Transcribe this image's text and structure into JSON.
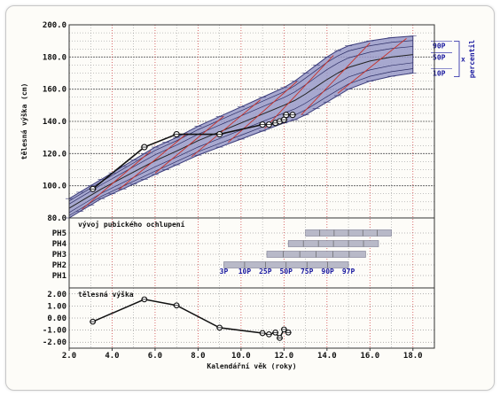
{
  "chart_data": [
    {
      "type": "line",
      "panel": "height",
      "ylabel": "tělesná výška (cm)",
      "ylim": [
        80,
        200
      ],
      "yticks": [
        80,
        100,
        120,
        140,
        160,
        180,
        200
      ],
      "ytick_labels": [
        "80.0",
        "100.0",
        "120.0",
        "140.0",
        "160.0",
        "180.0",
        "200.0"
      ],
      "percentile_band": {
        "x": [
          2,
          2.5,
          3,
          3.5,
          4,
          4.5,
          5,
          5.5,
          6,
          6.5,
          7,
          8,
          9,
          10,
          11,
          12,
          12.5,
          13,
          13.5,
          14,
          14.5,
          15,
          16,
          17,
          18
        ],
        "p97": [
          92,
          96,
          100,
          104,
          108,
          112,
          116,
          120,
          124,
          127,
          130,
          137,
          143,
          149,
          155,
          161,
          165,
          170,
          175,
          180,
          184,
          187,
          190,
          192,
          193
        ],
        "p3": [
          80,
          84,
          88,
          92,
          95,
          98,
          101,
          104,
          107,
          110,
          113,
          119,
          124,
          129,
          134,
          139,
          141,
          144,
          148,
          152,
          156,
          160,
          165,
          168,
          170
        ]
      },
      "percentile_labels": [
        "90P",
        "50P",
        "10P"
      ],
      "percentile_label_values": [
        187,
        180,
        170
      ],
      "side_label": "percentil",
      "side_symbol": "x",
      "series": [
        {
          "x": [
            3.1,
            5.5,
            7.0,
            9.0,
            11.0,
            11.3,
            11.6,
            11.8,
            12.0,
            12.1,
            12.4
          ],
          "y": [
            98,
            124,
            132,
            132,
            138,
            138,
            139,
            140,
            141,
            144,
            144
          ]
        }
      ]
    },
    {
      "type": "bar",
      "panel": "puberty",
      "title": "vývoj pubického ochlupení",
      "categories": [
        "PH5",
        "PH4",
        "PH3",
        "PH2",
        "PH1"
      ],
      "ranges": [
        [
          13.0,
          17.0
        ],
        [
          12.2,
          16.4
        ],
        [
          11.2,
          15.8
        ],
        [
          9.2,
          15.0
        ],
        null
      ],
      "centile_labels": [
        "3P",
        "10P",
        "25P",
        "50P",
        "75P",
        "90P",
        "97P"
      ]
    },
    {
      "type": "line",
      "panel": "sds",
      "title": "tělesná výška",
      "ylim": [
        -2.5,
        2.5
      ],
      "yticks": [
        2,
        1,
        0,
        -1,
        -2
      ],
      "ytick_labels": [
        "2.00",
        "1.00",
        "0.00",
        "-1.00",
        "-2.00"
      ],
      "series": [
        {
          "x": [
            3.1,
            5.5,
            7.0,
            9.0,
            11.0,
            11.3,
            11.6,
            11.8,
            12.0,
            12.2
          ],
          "y": [
            -0.3,
            1.55,
            1.05,
            -0.8,
            -1.25,
            -1.35,
            -1.2,
            -1.65,
            -0.95,
            -1.2
          ]
        }
      ]
    }
  ],
  "xaxis": {
    "label": "Kalendářní věk (roky)",
    "ticks": [
      2,
      4,
      6,
      8,
      10,
      12,
      14,
      16,
      18
    ],
    "tick_labels": [
      "2.0",
      "4.0",
      "6.0",
      "8.0",
      "10.0",
      "12.0",
      "14.0",
      "16.0",
      "18.0"
    ]
  },
  "colors": {
    "band": "#9899c8",
    "band_edge": "#3b3c7a",
    "red_line": "#c8322a",
    "series": "#111111",
    "puberty_bar": "#b8b9c8",
    "grid_red": "#d24a4a",
    "grid_dark": "#555555",
    "percentile_label": "#1a1aa0"
  }
}
